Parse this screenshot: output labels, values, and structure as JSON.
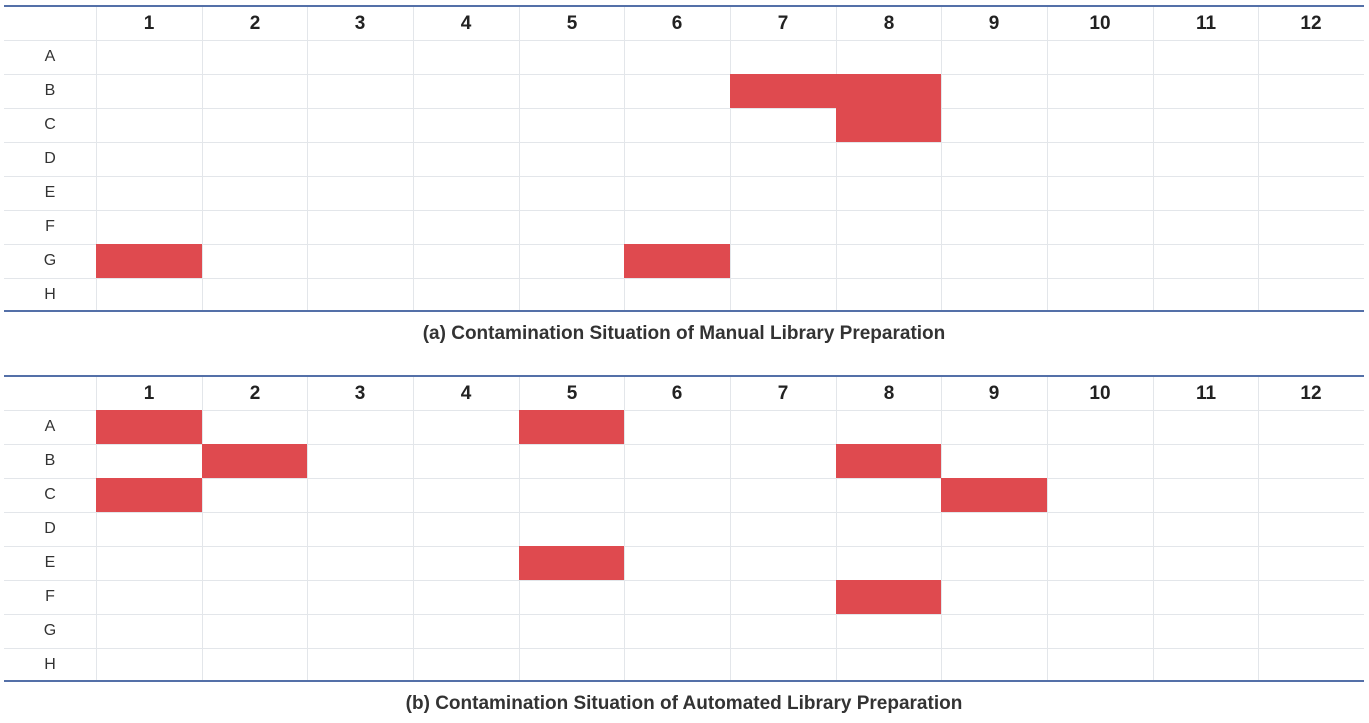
{
  "colors": {
    "contaminated": "#df4a4f",
    "rule": "#5470a8",
    "grid": "#e3e6ea"
  },
  "columns": [
    "1",
    "2",
    "3",
    "4",
    "5",
    "6",
    "7",
    "8",
    "9",
    "10",
    "11",
    "12"
  ],
  "rows": [
    "A",
    "B",
    "C",
    "D",
    "E",
    "F",
    "G",
    "H"
  ],
  "panels": [
    {
      "caption": "(a) Contamination Situation of Manual Library Preparation",
      "contaminated_wells": [
        "B7",
        "B8",
        "C8",
        "G1",
        "G6"
      ]
    },
    {
      "caption": "(b) Contamination Situation of Automated Library Preparation",
      "contaminated_wells": [
        "A1",
        "A5",
        "B2",
        "B8",
        "C1",
        "C9",
        "E5",
        "F8"
      ]
    }
  ]
}
